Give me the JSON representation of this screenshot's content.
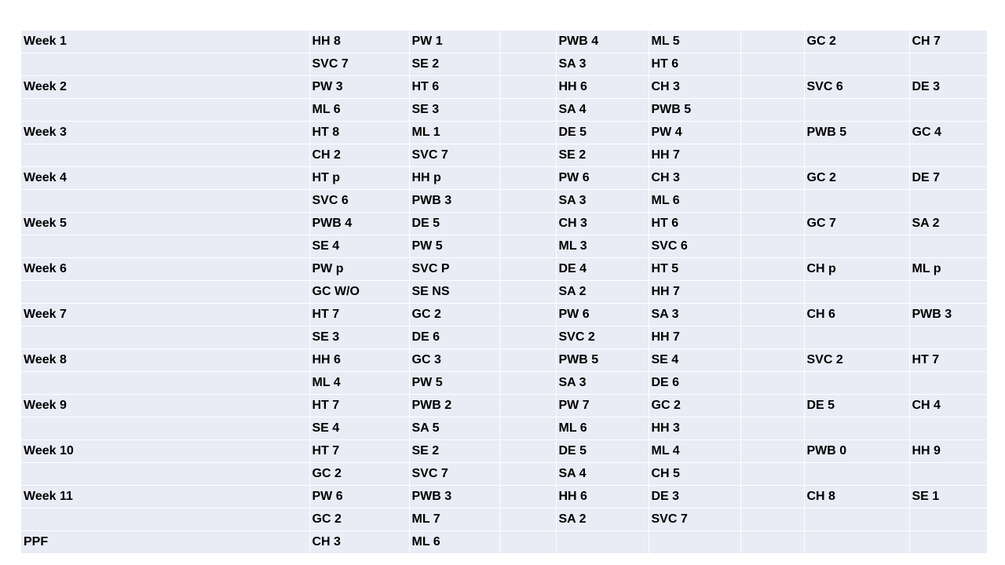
{
  "rows": [
    [
      "Week 1",
      "HH 8",
      "PW 1",
      "",
      "PWB 4",
      "ML 5",
      "",
      "GC 2",
      "CH 7"
    ],
    [
      "",
      "SVC 7",
      "SE 2",
      "",
      "SA 3",
      "HT 6",
      "",
      "",
      ""
    ],
    [
      "Week 2",
      "PW 3",
      "HT 6",
      "",
      "HH 6",
      "CH 3",
      "",
      "SVC 6",
      "DE 3"
    ],
    [
      "",
      "ML 6",
      "SE 3",
      "",
      "SA 4",
      "PWB 5",
      "",
      "",
      ""
    ],
    [
      "Week 3",
      "HT 8",
      "ML 1",
      "",
      "DE 5",
      "PW 4",
      "",
      "PWB 5",
      "GC 4"
    ],
    [
      "",
      "CH 2",
      "SVC 7",
      "",
      "SE 2",
      "HH 7",
      "",
      "",
      ""
    ],
    [
      "Week 4",
      "HT p",
      "HH p",
      "",
      "PW 6",
      "CH 3",
      "",
      "GC 2",
      "DE 7"
    ],
    [
      "",
      "SVC 6",
      "PWB 3",
      "",
      "SA 3",
      "ML 6",
      "",
      "",
      ""
    ],
    [
      "Week 5",
      "PWB 4",
      "DE 5",
      "",
      "CH 3",
      "HT 6",
      "",
      "GC 7",
      "SA 2"
    ],
    [
      "",
      "SE 4",
      "PW 5",
      "",
      "ML 3",
      "SVC 6",
      "",
      "",
      ""
    ],
    [
      "Week 6",
      "PW p",
      "SVC P",
      "",
      "DE 4",
      "HT 5",
      "",
      "CH p",
      "ML p"
    ],
    [
      "",
      "GC W/O",
      "SE NS",
      "",
      "SA 2",
      "HH 7",
      "",
      "",
      ""
    ],
    [
      "Week 7",
      "HT 7",
      "GC 2",
      "",
      "PW 6",
      "SA 3",
      "",
      "CH 6",
      "PWB 3"
    ],
    [
      "",
      "SE 3",
      " DE 6",
      "",
      "SVC 2",
      "HH 7",
      "",
      "",
      ""
    ],
    [
      "Week 8",
      "HH 6",
      "GC 3",
      "",
      "PWB 5",
      "SE 4",
      "",
      "SVC 2",
      "HT 7"
    ],
    [
      "",
      "ML 4",
      "PW 5",
      "",
      "SA 3",
      "DE 6",
      "",
      "",
      ""
    ],
    [
      "Week 9",
      "HT 7",
      "PWB 2",
      "",
      "PW 7",
      "GC 2",
      "",
      "DE 5",
      "CH 4"
    ],
    [
      "",
      "SE 4",
      "SA 5",
      "",
      "ML 6",
      "HH 3",
      "",
      "",
      ""
    ],
    [
      "Week 10",
      "HT 7",
      "SE 2",
      "",
      "DE 5",
      "ML 4",
      "",
      "PWB 0",
      "HH 9"
    ],
    [
      "",
      "GC 2",
      "SVC 7",
      "",
      "SA 4",
      "CH 5",
      "",
      "",
      ""
    ],
    [
      "Week 11",
      "PW 6",
      "PWB 3",
      "",
      "HH 6",
      "DE 3",
      "",
      "CH 8",
      "SE 1"
    ],
    [
      "",
      "GC 2",
      "ML 7",
      "",
      "SA 2",
      "SVC 7",
      "",
      "",
      ""
    ],
    [
      "PPF",
      "CH 3",
      "ML 6",
      "",
      "",
      "",
      "",
      "",
      ""
    ]
  ],
  "colors": {
    "cell_background": "#e9ebf5",
    "grid_line": "#ffffff",
    "text": "#000000"
  }
}
